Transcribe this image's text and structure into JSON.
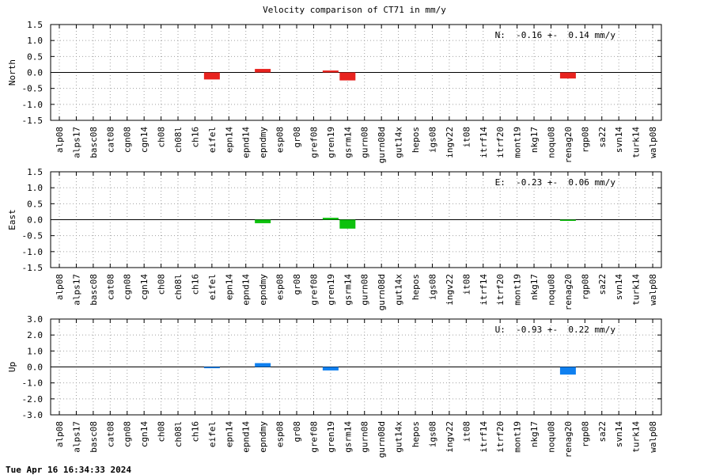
{
  "title": "Velocity comparison of CT71 in mm/y",
  "timestamp": "Tue Apr 16 16:34:33 2024",
  "chart_data": [
    {
      "type": "bar",
      "ylabel": "North",
      "ylim": [
        -1.5,
        1.5
      ],
      "yticks": [
        "1.5",
        "1.0",
        "0.5",
        "0.0",
        "-0.5",
        "-1.0",
        "-1.5"
      ],
      "grid": true,
      "annotation": "N:  -0.16 +-  0.14 mm/y",
      "color": "#e8231f",
      "categories": [
        "alp08",
        "alps17",
        "basc08",
        "cat08",
        "cgn08",
        "cgn14",
        "ch08",
        "ch08l",
        "ch16",
        "eifel",
        "epn14",
        "epnd14",
        "epndmy",
        "esp08",
        "gr08",
        "gref08",
        "gren19",
        "gsrm14",
        "gurn08",
        "gurn08d",
        "gut14x",
        "hepos",
        "igs08",
        "ingv22",
        "it08",
        "itrf14",
        "itrf20",
        "mont19",
        "nkg17",
        "noqu08",
        "renag20",
        "rgp08",
        "sa22",
        "svn14",
        "turk14",
        "walp08"
      ],
      "values": [
        null,
        null,
        null,
        null,
        null,
        null,
        null,
        null,
        null,
        -0.22,
        null,
        null,
        0.11,
        null,
        null,
        null,
        0.06,
        -0.25,
        null,
        null,
        null,
        null,
        null,
        null,
        null,
        null,
        null,
        null,
        null,
        null,
        -0.19,
        null,
        null,
        null,
        null,
        null
      ]
    },
    {
      "type": "bar",
      "ylabel": "East",
      "ylim": [
        -1.5,
        1.5
      ],
      "yticks": [
        "1.5",
        "1.0",
        "0.5",
        "0.0",
        "-0.5",
        "-1.0",
        "-1.5"
      ],
      "grid": true,
      "annotation": "E:  -0.23 +-  0.06 mm/y",
      "color": "#0ec10e",
      "categories": [
        "alp08",
        "alps17",
        "basc08",
        "cat08",
        "cgn08",
        "cgn14",
        "ch08",
        "ch08l",
        "ch16",
        "eifel",
        "epn14",
        "epnd14",
        "epndmy",
        "esp08",
        "gr08",
        "gref08",
        "gren19",
        "gsrm14",
        "gurn08",
        "gurn08d",
        "gut14x",
        "hepos",
        "igs08",
        "ingv22",
        "it08",
        "itrf14",
        "itrf20",
        "mont19",
        "nkg17",
        "noqu08",
        "renag20",
        "rgp08",
        "sa22",
        "svn14",
        "turk14",
        "walp08"
      ],
      "values": [
        null,
        null,
        null,
        null,
        null,
        null,
        null,
        null,
        null,
        null,
        null,
        null,
        -0.11,
        null,
        null,
        null,
        0.06,
        -0.28,
        null,
        null,
        null,
        null,
        null,
        null,
        null,
        null,
        null,
        null,
        null,
        null,
        -0.03,
        null,
        null,
        null,
        null,
        null
      ]
    },
    {
      "type": "bar",
      "ylabel": "Up",
      "ylim": [
        -3.0,
        3.0
      ],
      "yticks": [
        "3.0",
        "2.0",
        "1.0",
        "0.0",
        "-1.0",
        "-2.0",
        "-3.0"
      ],
      "grid": true,
      "annotation": "U:  -0.93 +-  0.22 mm/y",
      "color": "#0f80f0",
      "categories": [
        "alp08",
        "alps17",
        "basc08",
        "cat08",
        "cgn08",
        "cgn14",
        "ch08",
        "ch08l",
        "ch16",
        "eifel",
        "epn14",
        "epnd14",
        "epndmy",
        "esp08",
        "gr08",
        "gref08",
        "gren19",
        "gsrm14",
        "gurn08",
        "gurn08d",
        "gut14x",
        "hepos",
        "igs08",
        "ingv22",
        "it08",
        "itrf14",
        "itrf20",
        "mont19",
        "nkg17",
        "noqu08",
        "renag20",
        "rgp08",
        "sa22",
        "svn14",
        "turk14",
        "walp08"
      ],
      "values": [
        null,
        null,
        null,
        null,
        null,
        null,
        null,
        null,
        null,
        -0.08,
        null,
        null,
        0.24,
        null,
        null,
        null,
        -0.22,
        null,
        null,
        null,
        null,
        null,
        null,
        null,
        null,
        null,
        null,
        null,
        null,
        null,
        -0.48,
        null,
        null,
        null,
        null,
        null
      ]
    }
  ]
}
